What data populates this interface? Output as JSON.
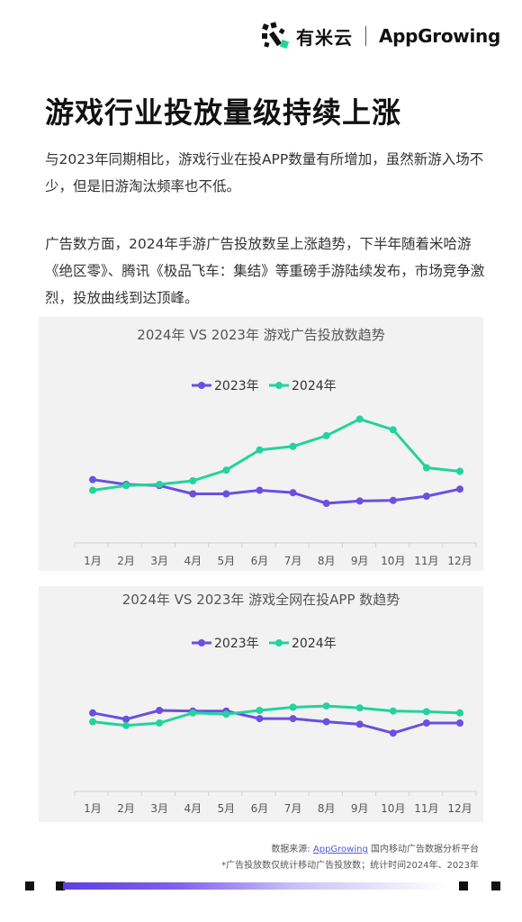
{
  "header": {
    "brand_cn": "有米云",
    "brand_en_prefix": "App",
    "brand_en_g": "G",
    "brand_en_suffix": "rowing"
  },
  "title": "游戏行业投放量级持续上涨",
  "paragraphs": [
    "与2023年同期相比，游戏行业在投APP数量有所增加，虽然新游入场不少，但是旧游淘汰频率也不低。",
    "广告数方面，2024年手游广告投放数呈上涨趋势，下半年随着米哈游《绝区零》、腾讯《极品飞车：集结》等重磅手游陆续发布，市场竞争激烈，投放曲线到达顶峰。"
  ],
  "chart_data": [
    {
      "type": "line",
      "title": "2024年 VS 2023年 游戏广告投放数趋势",
      "categories": [
        "1月",
        "2月",
        "3月",
        "4月",
        "5月",
        "6月",
        "7月",
        "8月",
        "9月",
        "10月",
        "11月",
        "12月"
      ],
      "series": [
        {
          "name": "2023年",
          "color": "#6a4fe0",
          "values": [
            45,
            41,
            40,
            33,
            33,
            36,
            34,
            25,
            27,
            27.5,
            31,
            37
          ]
        },
        {
          "name": "2024年",
          "color": "#23d39c",
          "values": [
            36,
            40,
            41,
            44,
            53,
            70,
            73,
            82,
            96,
            87,
            55,
            52
          ]
        }
      ],
      "ylim": [
        0,
        110
      ],
      "grid": false,
      "legend": "top-center"
    },
    {
      "type": "line",
      "title": "2024年 VS 2023年 游戏全网在投APP 数趋势",
      "categories": [
        "1月",
        "2月",
        "3月",
        "4月",
        "5月",
        "6月",
        "7月",
        "8月",
        "9月",
        "10月",
        "11月",
        "12月"
      ],
      "series": [
        {
          "name": "2023年",
          "color": "#6a4fe0",
          "values": [
            58,
            53,
            60,
            59.5,
            59.5,
            53.5,
            53.5,
            51,
            49,
            42,
            50,
            50
          ]
        },
        {
          "name": "2024年",
          "color": "#23d39c",
          "values": [
            51,
            48,
            50,
            58,
            57,
            60,
            62.5,
            63.5,
            62,
            59.5,
            59,
            58
          ]
        }
      ],
      "ylim": [
        0,
        100
      ],
      "grid": false,
      "legend": "top-center"
    }
  ],
  "footer": {
    "source_prefix": "数据来源: ",
    "source_link": "AppGrowing",
    "source_suffix": " 国内移动广告数据分析平台",
    "note": "*广告投放数仅统计移动广告投放数；统计时间2024年、2023年"
  }
}
